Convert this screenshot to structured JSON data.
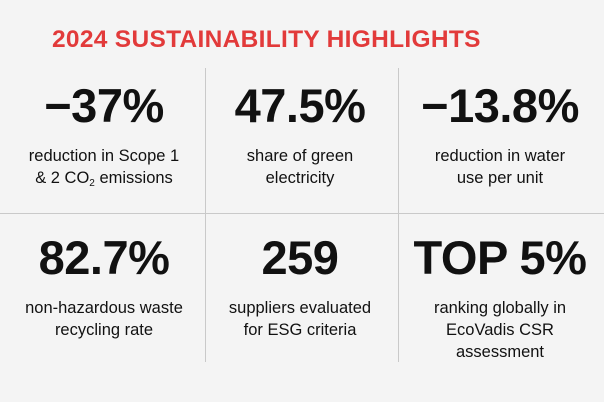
{
  "header": {
    "title": "2024 SUSTAINABILITY HIGHLIGHTS"
  },
  "colors": {
    "accent": "#e23a3a",
    "background": "#f4f4f4",
    "text": "#111111",
    "divider": "#c9c9c9"
  },
  "stats": [
    {
      "value": "−37%",
      "label_line1": "reduction in Scope 1",
      "label_line2_pre": "& 2 CO",
      "label_line2_sub": "2",
      "label_line2_post": " emissions"
    },
    {
      "value": "47.5%",
      "label_line1": "share of green",
      "label_line2": "electricity"
    },
    {
      "value": "−13.8%",
      "label_line1": "reduction in water",
      "label_line2": "use per unit"
    },
    {
      "value": "82.7%",
      "label_line1": "non-hazardous waste",
      "label_line2": "recycling rate"
    },
    {
      "value": "259",
      "label_line1": "suppliers evaluated",
      "label_line2": "for ESG criteria"
    },
    {
      "value": "TOP 5%",
      "label_line1": "ranking globally in",
      "label_line2": "EcoVadis CSR",
      "label_line3": "assessment"
    }
  ]
}
